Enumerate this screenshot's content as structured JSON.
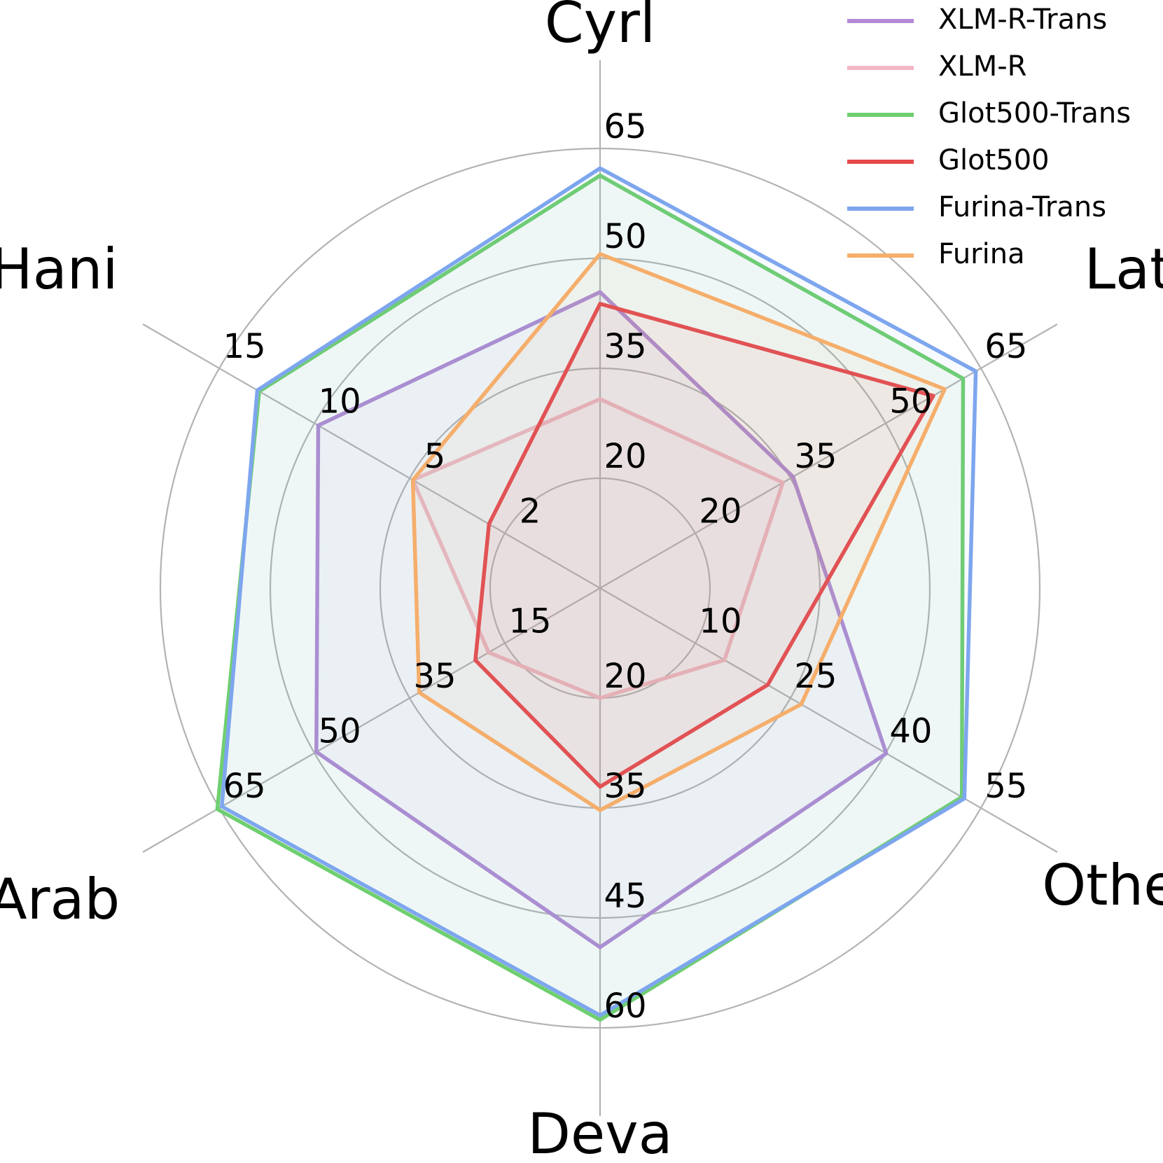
{
  "chart_data": {
    "type": "radar",
    "axes": [
      {
        "name": "Cyrl",
        "ticks": [
          "20",
          "35",
          "50",
          "65"
        ],
        "tick_values": [
          20,
          35,
          50,
          65
        ]
      },
      {
        "name": "Latn",
        "ticks": [
          "20",
          "35",
          "50",
          "65"
        ],
        "tick_values": [
          20,
          35,
          50,
          65
        ]
      },
      {
        "name": "Other",
        "ticks": [
          "10",
          "25",
          "40",
          "55"
        ],
        "tick_values": [
          10,
          25,
          40,
          55
        ]
      },
      {
        "name": "Deva",
        "ticks": [
          "20",
          "35",
          "45",
          "60"
        ],
        "tick_values": [
          20,
          35,
          45,
          60
        ]
      },
      {
        "name": "Arab",
        "ticks": [
          "15",
          "35",
          "50",
          "65"
        ],
        "tick_values": [
          15,
          35,
          50,
          65
        ]
      },
      {
        "name": "Hani",
        "ticks": [
          "2",
          "5",
          "10",
          "15"
        ],
        "tick_values": [
          2,
          5,
          10,
          15
        ]
      }
    ],
    "series": [
      {
        "name": "XLM-R-Trans",
        "color": "#b28ad6",
        "values": [
          45.4,
          35.4,
          40.1,
          49.0,
          49.7,
          9.8
        ]
      },
      {
        "name": "XLM-R",
        "color": "#f2b8c6",
        "values": [
          30.8,
          33.8,
          14.6,
          20.0,
          18.4,
          4.9
        ]
      },
      {
        "name": "Glot500-Trans",
        "color": "#6fcf6f",
        "values": [
          61.3,
          62.2,
          52.0,
          58.9,
          65.3,
          12.9
        ]
      },
      {
        "name": "Glot500",
        "color": "#e8484a",
        "values": [
          43.8,
          57.5,
          21.4,
          32.1,
          21.2,
          2.5
        ]
      },
      {
        "name": "Furina-Trans",
        "color": "#7ea6ee",
        "values": [
          62.3,
          64.2,
          52.4,
          58.3,
          64.6,
          13.0
        ]
      },
      {
        "name": "Furina",
        "color": "#f5ae6b",
        "values": [
          50.6,
          59.3,
          26.7,
          35.2,
          33.0,
          4.9
        ]
      }
    ],
    "grid": true,
    "legend": "top-right"
  }
}
